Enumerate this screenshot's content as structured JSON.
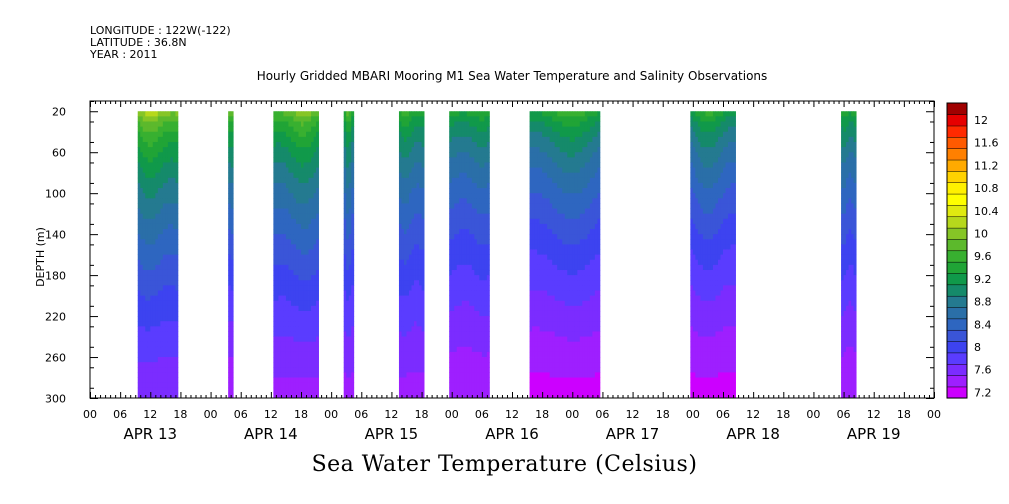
{
  "header": {
    "longitude": "LONGITUDE : 122W(-122)",
    "latitude": "LATITUDE : 36.8N",
    "year": "YEAR : 2011"
  },
  "chart_data": {
    "type": "heatmap",
    "title": "Hourly Gridded MBARI Mooring M1 Sea Water Temperature and Salinity Observations",
    "ylabel": "DEPTH (m)",
    "xlabel": "Sea Water Temperature (Celsius)",
    "x_unit": "hours",
    "xlim": [
      0,
      168
    ],
    "ylim": [
      10,
      300
    ],
    "y_reversed": true,
    "y_ticks": [
      20,
      60,
      100,
      140,
      180,
      220,
      260,
      300
    ],
    "x_hour_labels": [
      "00",
      "06",
      "12",
      "18",
      "00",
      "06",
      "12",
      "18",
      "00",
      "06",
      "12",
      "18",
      "00",
      "06",
      "12",
      "18",
      "00",
      "06",
      "12",
      "18",
      "00",
      "06",
      "12",
      "18",
      "00",
      "06",
      "12",
      "18",
      "00"
    ],
    "day_labels": [
      {
        "label": "APR 13",
        "hour": 12
      },
      {
        "label": "APR 14",
        "hour": 36
      },
      {
        "label": "APR 15",
        "hour": 60
      },
      {
        "label": "APR 16",
        "hour": 84
      },
      {
        "label": "APR 17",
        "hour": 108
      },
      {
        "label": "APR 18",
        "hour": 132
      },
      {
        "label": "APR 19",
        "hour": 156
      }
    ],
    "data_depth_range": [
      20,
      300
    ],
    "segments": [
      {
        "start_hour": 9.5,
        "end_hour": 17.5,
        "surface_temp": 10.2,
        "bottom_temp": 7.6
      },
      {
        "start_hour": 27.5,
        "end_hour": 28.5,
        "surface_temp": 9.9,
        "bottom_temp": 7.4
      },
      {
        "start_hour": 36.5,
        "end_hour": 45.5,
        "surface_temp": 10.0,
        "bottom_temp": 7.5
      },
      {
        "start_hour": 50.5,
        "end_hour": 52.5,
        "surface_temp": 9.7,
        "bottom_temp": 7.5
      },
      {
        "start_hour": 61.5,
        "end_hour": 66.5,
        "surface_temp": 9.6,
        "bottom_temp": 7.5
      },
      {
        "start_hour": 71.5,
        "end_hour": 79.5,
        "surface_temp": 9.5,
        "bottom_temp": 7.4
      },
      {
        "start_hour": 87.5,
        "end_hour": 101.5,
        "surface_temp": 9.6,
        "bottom_temp": 7.3
      },
      {
        "start_hour": 119.5,
        "end_hour": 128.5,
        "surface_temp": 9.5,
        "bottom_temp": 7.3
      },
      {
        "start_hour": 149.5,
        "end_hour": 152.5,
        "surface_temp": 9.5,
        "bottom_temp": 7.4
      }
    ],
    "colorbar": {
      "levels": [
        7.2,
        7.4,
        7.6,
        7.8,
        8.0,
        8.2,
        8.4,
        8.6,
        8.8,
        9.0,
        9.2,
        9.4,
        9.6,
        9.8,
        10.0,
        10.2,
        10.4,
        10.6,
        10.8,
        11.0,
        11.2,
        11.4,
        11.6,
        11.8,
        12.0,
        12.2
      ],
      "labels": [
        "7.2",
        "7.6",
        "8",
        "8.4",
        "8.8",
        "9.2",
        "9.6",
        "10",
        "10.4",
        "10.8",
        "11.2",
        "11.6",
        "12"
      ],
      "colors": [
        "#cc00ff",
        "#9e1fff",
        "#7b2cff",
        "#5a3cff",
        "#3d43f0",
        "#3a55d8",
        "#2e66c0",
        "#2a6fa8",
        "#247a90",
        "#158a6a",
        "#10994a",
        "#20a436",
        "#38b030",
        "#5cb92c",
        "#86c526",
        "#b6d81c",
        "#e0ea10",
        "#ffff00",
        "#fff000",
        "#ffd200",
        "#ffaa00",
        "#ff8000",
        "#ff5a00",
        "#ff2a00",
        "#e60000",
        "#a00000"
      ]
    }
  }
}
